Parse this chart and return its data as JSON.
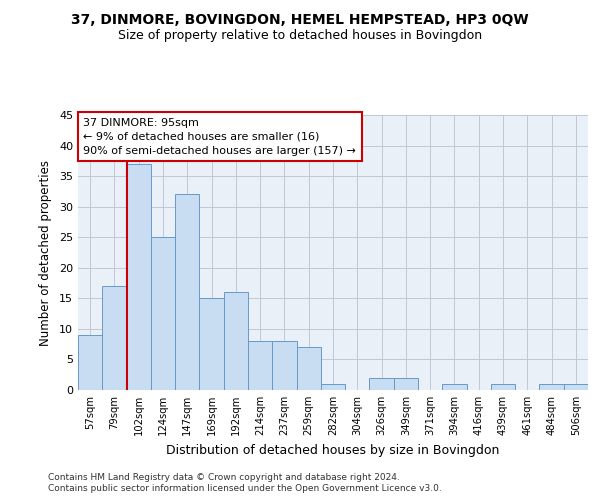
{
  "title": "37, DINMORE, BOVINGDON, HEMEL HEMPSTEAD, HP3 0QW",
  "subtitle": "Size of property relative to detached houses in Bovingdon",
  "xlabel": "Distribution of detached houses by size in Bovingdon",
  "ylabel": "Number of detached properties",
  "categories": [
    "57sqm",
    "79sqm",
    "102sqm",
    "124sqm",
    "147sqm",
    "169sqm",
    "192sqm",
    "214sqm",
    "237sqm",
    "259sqm",
    "282sqm",
    "304sqm",
    "326sqm",
    "349sqm",
    "371sqm",
    "394sqm",
    "416sqm",
    "439sqm",
    "461sqm",
    "484sqm",
    "506sqm"
  ],
  "values": [
    9,
    17,
    37,
    25,
    32,
    15,
    16,
    8,
    8,
    7,
    1,
    0,
    2,
    2,
    0,
    1,
    0,
    1,
    0,
    1,
    1
  ],
  "bar_color": "#c9ddf2",
  "bar_edge_color": "#6699cc",
  "property_line_index": 2,
  "property_line_color": "#cc0000",
  "annotation_text": "37 DINMORE: 95sqm\n← 9% of detached houses are smaller (16)\n90% of semi-detached houses are larger (157) →",
  "annotation_box_color": "#ffffff",
  "annotation_box_edge": "#cc0000",
  "ylim": [
    0,
    45
  ],
  "yticks": [
    0,
    5,
    10,
    15,
    20,
    25,
    30,
    35,
    40,
    45
  ],
  "background_color": "#ffffff",
  "axes_bg_color": "#eaf0f8",
  "grid_color": "#c0c8d8",
  "footer_line1": "Contains HM Land Registry data © Crown copyright and database right 2024.",
  "footer_line2": "Contains public sector information licensed under the Open Government Licence v3.0."
}
